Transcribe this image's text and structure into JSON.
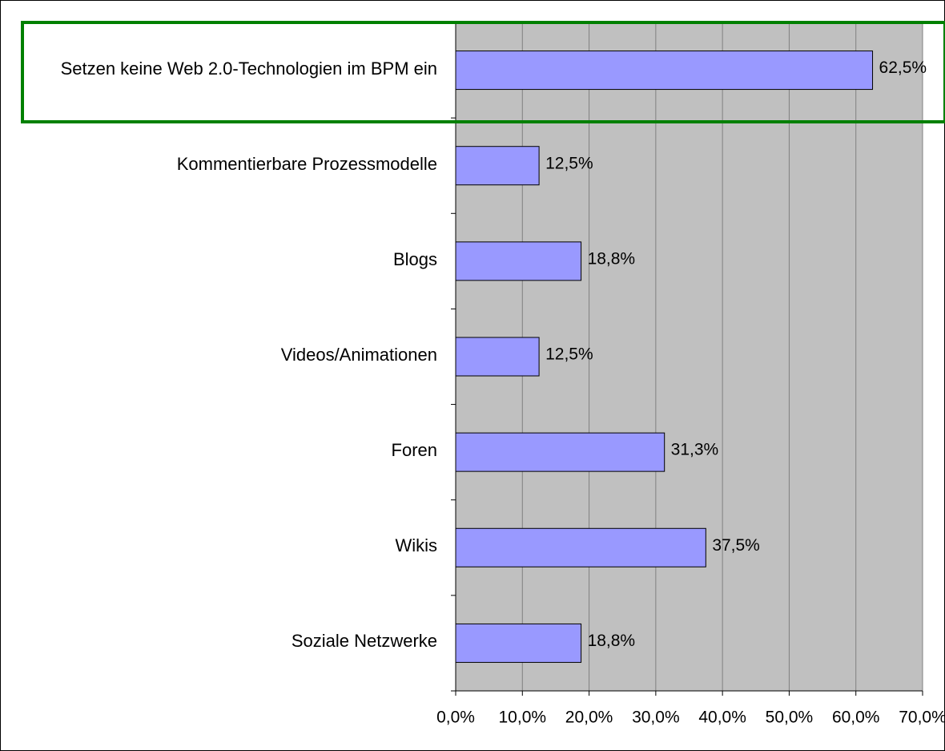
{
  "chart_data": {
    "type": "barh",
    "categories": [
      "Setzen keine Web 2.0-Technologien im BPM ein",
      "Kommentierbare Prozessmodelle",
      "Blogs",
      "Videos/Animationen",
      "Foren",
      "Wikis",
      "Soziale Netzwerke"
    ],
    "values": [
      62.5,
      12.5,
      18.8,
      12.5,
      31.3,
      37.5,
      18.8
    ],
    "value_labels": [
      "62,5%",
      "12,5%",
      "18,8%",
      "12,5%",
      "31,3%",
      "37,5%",
      "18,8%"
    ],
    "color": "#9999ff",
    "xlim": [
      0,
      70
    ],
    "xticks": [
      {
        "value": 0,
        "label": "0,0%"
      },
      {
        "value": 10,
        "label": "10,0%"
      },
      {
        "value": 20,
        "label": "20,0%"
      },
      {
        "value": 30,
        "label": "30,0%"
      },
      {
        "value": 40,
        "label": "40,0%"
      },
      {
        "value": 50,
        "label": "50,0%"
      },
      {
        "value": 60,
        "label": "60,0%"
      },
      {
        "value": 70,
        "label": "70,0%"
      }
    ],
    "grid": true
  }
}
